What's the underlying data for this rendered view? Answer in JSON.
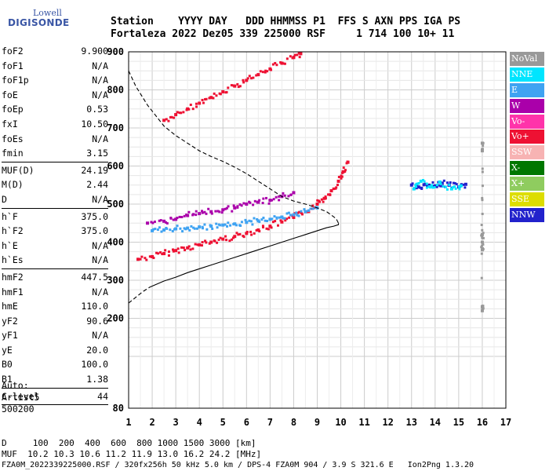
{
  "logo": {
    "line1": "Lowell",
    "line2": "DIGISONDE"
  },
  "header": {
    "labels": "Station    YYYY DAY   DDD HHMMSS P1  FFS S AXN PPS IGA PS",
    "values": "Fortaleza 2022 Dez05 339 225000 RSF     1 714 100 10+ 11"
  },
  "params": {
    "g1": [
      {
        "name": "foF2",
        "value": "9.900"
      },
      {
        "name": "foF1",
        "value": "N/A"
      },
      {
        "name": "foF1p",
        "value": "N/A"
      },
      {
        "name": "foE",
        "value": "N/A"
      },
      {
        "name": "foEp",
        "value": "0.53"
      },
      {
        "name": "fxI",
        "value": "10.50"
      },
      {
        "name": "foEs",
        "value": "N/A"
      },
      {
        "name": "fmin",
        "value": "3.15"
      }
    ],
    "g2": [
      {
        "name": "MUF(D)",
        "value": "24.19"
      },
      {
        "name": "M(D)",
        "value": "2.44"
      },
      {
        "name": "D",
        "value": "N/A"
      }
    ],
    "g3": [
      {
        "name": "h`F",
        "value": "375.0"
      },
      {
        "name": "h`F2",
        "value": "375.0"
      },
      {
        "name": "h`E",
        "value": "N/A"
      },
      {
        "name": "h`Es",
        "value": "N/A"
      }
    ],
    "g4": [
      {
        "name": "hmF2",
        "value": "447.5"
      },
      {
        "name": "hmF1",
        "value": "N/A"
      },
      {
        "name": "hmE",
        "value": "110.0"
      },
      {
        "name": "yF2",
        "value": "90.6"
      },
      {
        "name": "yF1",
        "value": "N/A"
      },
      {
        "name": "yE",
        "value": "20.0"
      },
      {
        "name": "B0",
        "value": "100.0"
      },
      {
        "name": "B1",
        "value": "1.38"
      }
    ],
    "g5": [
      {
        "name": "C-level",
        "value": "44"
      }
    ]
  },
  "auto": {
    "line1": "Auto:",
    "line2": "Artist5",
    "line3": "500200"
  },
  "legend": [
    {
      "label": "NoVal",
      "color": "#999999"
    },
    {
      "label": "NNE",
      "color": "#00e5ff"
    },
    {
      "label": "E",
      "color": "#3fa3f2"
    },
    {
      "label": "W",
      "color": "#aa00aa"
    },
    {
      "label": "Vo-",
      "color": "#ff33aa"
    },
    {
      "label": "Vo+",
      "color": "#ee1133"
    },
    {
      "label": "SSW",
      "color": "#f7b3b3"
    },
    {
      "label": "X-",
      "color": "#007700"
    },
    {
      "label": "X+",
      "color": "#8fcc5f"
    },
    {
      "label": "SSE",
      "color": "#dddd00"
    },
    {
      "label": "NNW",
      "color": "#2222cc"
    }
  ],
  "footer": {
    "line1": "D     100  200  400  600  800 1000 1500 3000 [km]",
    "line2": "MUF  10.2 10.3 10.6 11.2 11.9 13.0 16.2 24.2 [MHz]",
    "line3": "FZA0M_2022339225000.RSF / 320fx256h 50 kHz 5.0 km / DPS-4 FZA0M 904 / 3.9 S 321.6 E   Ion2Png 1.3.20"
  },
  "chart_data": {
    "type": "scatter",
    "xlim": [
      1,
      17
    ],
    "ylim": [
      80,
      900
    ],
    "xticks": [
      1,
      2,
      3,
      4,
      5,
      6,
      7,
      8,
      9,
      10,
      11,
      12,
      13,
      14,
      15,
      16,
      17
    ],
    "yticks": [
      80,
      100,
      200,
      300,
      400,
      500,
      600,
      700,
      800,
      900
    ],
    "grid": true,
    "xlabel": "",
    "ylabel": "",
    "series": [
      {
        "name": "Vo+",
        "color": "#ee1133",
        "x": [
          1.4,
          2,
          2.5,
          3,
          3.5,
          4,
          4.5,
          5,
          5.5,
          6,
          6.5,
          7,
          7.5,
          8,
          8.5,
          9,
          9.3,
          9.6,
          9.9,
          10.1,
          10.3
        ],
        "y": [
          355,
          362,
          370,
          378,
          385,
          393,
          400,
          408,
          415,
          423,
          432,
          442,
          453,
          465,
          480,
          500,
          515,
          535,
          560,
          585,
          610
        ]
      },
      {
        "name": "Vo+",
        "color": "#ee1133",
        "x": [
          2.5,
          3,
          3.5,
          4,
          4.5,
          5,
          5.5,
          6,
          6.5,
          7,
          7.5,
          8,
          8.3
        ],
        "y": [
          720,
          735,
          750,
          765,
          780,
          795,
          810,
          825,
          840,
          855,
          870,
          885,
          895
        ]
      },
      {
        "name": "W",
        "color": "#aa00aa",
        "x": [
          1.8,
          2.5,
          3,
          3.5,
          4,
          4.5,
          5,
          5.5,
          6,
          6.5,
          7,
          7.5,
          8
        ],
        "y": [
          450,
          455,
          460,
          470,
          475,
          480,
          485,
          490,
          500,
          505,
          510,
          520,
          530
        ]
      },
      {
        "name": "E",
        "color": "#3fa3f2",
        "x": [
          2,
          2.5,
          3,
          3.5,
          4,
          4.5,
          5,
          5.5,
          6,
          6.5,
          7,
          7.5,
          8,
          8.5,
          9
        ],
        "y": [
          430,
          432,
          435,
          437,
          440,
          442,
          445,
          448,
          452,
          456,
          460,
          466,
          472,
          480,
          490
        ]
      },
      {
        "name": "NNW",
        "color": "#2222cc",
        "x": [
          13,
          13.3,
          13.6,
          14,
          14.3,
          14.6,
          15,
          15.3
        ],
        "y": [
          550,
          545,
          552,
          548,
          555,
          550,
          545,
          552
        ]
      },
      {
        "name": "NNE",
        "color": "#00e5ff",
        "x": [
          13.1,
          13.4,
          13.8,
          14.2,
          14.7,
          15.1
        ],
        "y": [
          540,
          560,
          545,
          558,
          540,
          548
        ]
      },
      {
        "name": "NoVal",
        "color": "#999999",
        "x": [
          16,
          16,
          16,
          16,
          16,
          16,
          16
        ],
        "y": [
          420,
          400,
          380,
          640,
          660,
          230,
          220
        ]
      }
    ],
    "profile": {
      "solid_x": [
        1.9,
        2.5,
        3,
        3.5,
        4,
        4.5,
        5,
        5.5,
        6,
        6.5,
        7,
        7.5,
        8,
        8.5,
        9,
        9.4,
        9.7,
        9.9,
        9.9
      ],
      "solid_y": [
        282,
        298,
        308,
        320,
        330,
        340,
        350,
        360,
        370,
        380,
        390,
        400,
        410,
        420,
        430,
        438,
        442,
        446,
        450
      ],
      "dashed_x": [
        1,
        1.3,
        1.8,
        2.5,
        3,
        3.5,
        4,
        4.5,
        5,
        5.5,
        6,
        6.5,
        7,
        7.5,
        8,
        8.5,
        9,
        9.4,
        9.8,
        9.9
      ],
      "dashed_y": [
        850,
        810,
        760,
        705,
        680,
        660,
        640,
        625,
        612,
        597,
        580,
        560,
        540,
        520,
        508,
        500,
        490,
        480,
        462,
        450
      ],
      "dashed_low_x": [
        1,
        1.3,
        1.6,
        1.9
      ],
      "dashed_low_y": [
        240,
        255,
        270,
        282
      ]
    }
  }
}
